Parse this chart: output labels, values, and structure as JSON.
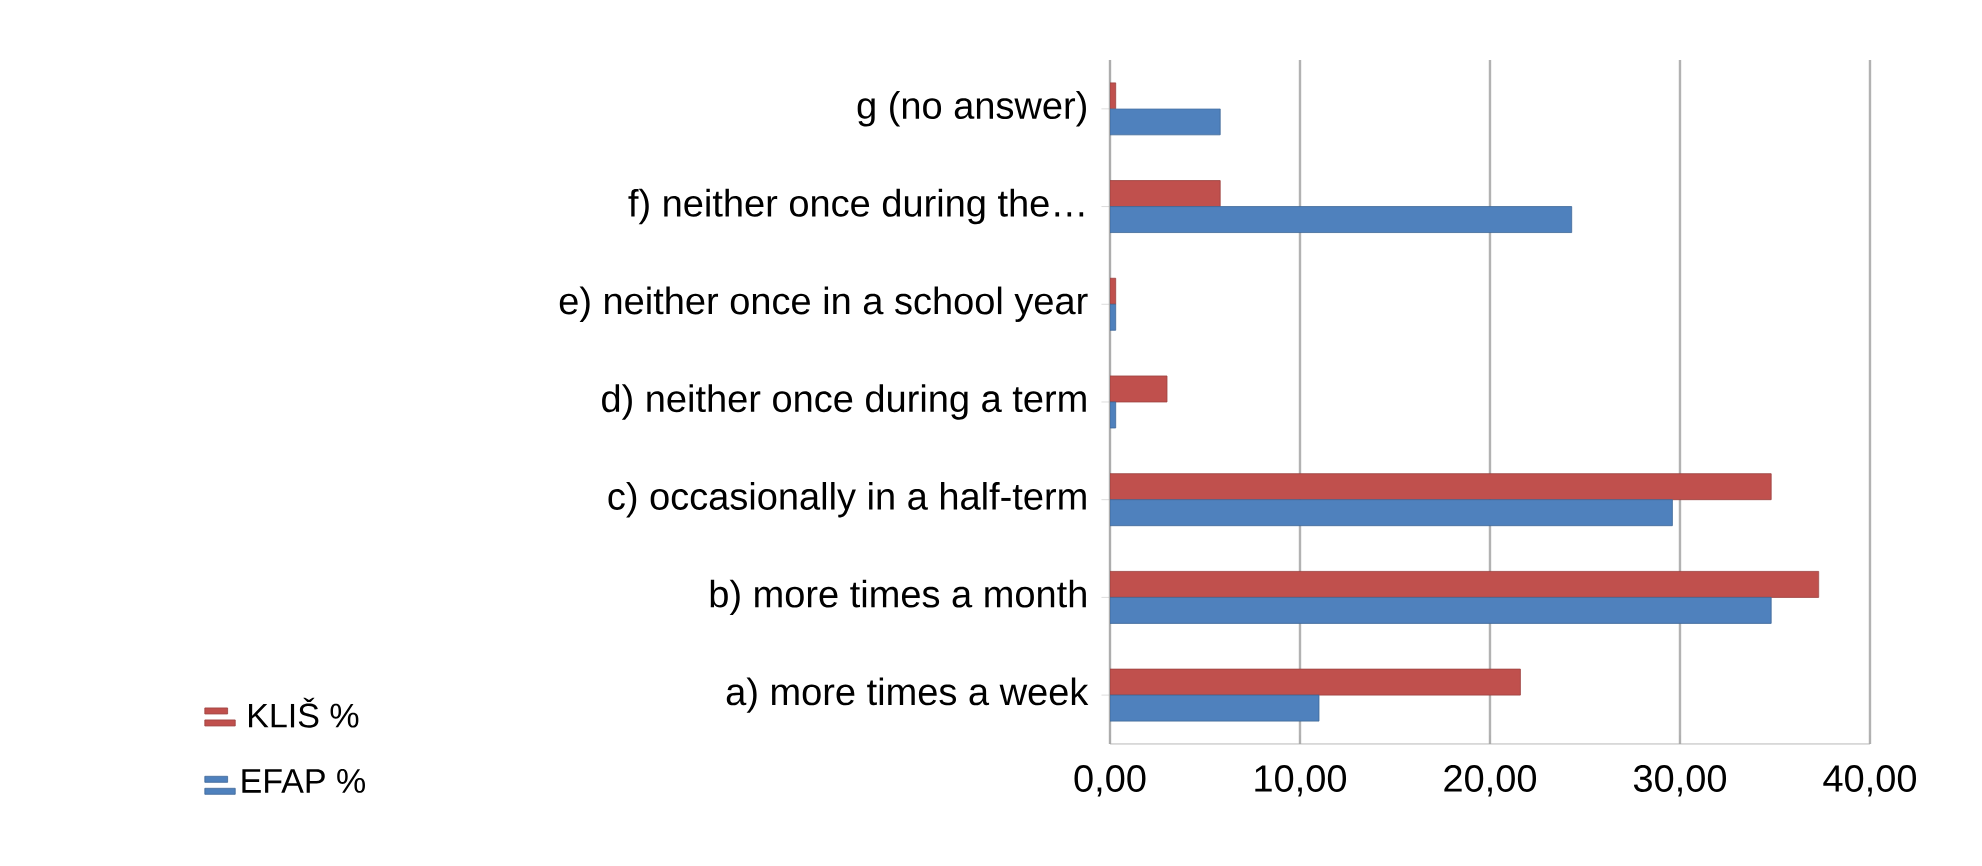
{
  "chart_data": {
    "type": "bar",
    "orientation": "horizontal",
    "categories": [
      "g (no answer)",
      "f) neither once during the…",
      "e) neither once in a school year",
      "d) neither once during a term",
      "c) occasionally in a half-term",
      "b) more times a month",
      "a) more times a week"
    ],
    "series": [
      {
        "name": "KLIŠ %",
        "color": "#c0504d",
        "values": [
          0.3,
          5.8,
          0.3,
          3.0,
          34.8,
          37.3,
          21.6
        ]
      },
      {
        "name": "EFAP %",
        "color": "#4f81bd",
        "values": [
          5.8,
          24.3,
          0.3,
          0.3,
          29.6,
          34.8,
          11.0
        ]
      }
    ],
    "xlim": [
      0,
      40
    ],
    "xticks": [
      {
        "value": 0,
        "label": "0,00"
      },
      {
        "value": 10,
        "label": "10,00"
      },
      {
        "value": 20,
        "label": "20,00"
      },
      {
        "value": 30,
        "label": "30,00"
      },
      {
        "value": 40,
        "label": "40,00"
      }
    ],
    "grid": "x",
    "legend": "bottom left"
  }
}
